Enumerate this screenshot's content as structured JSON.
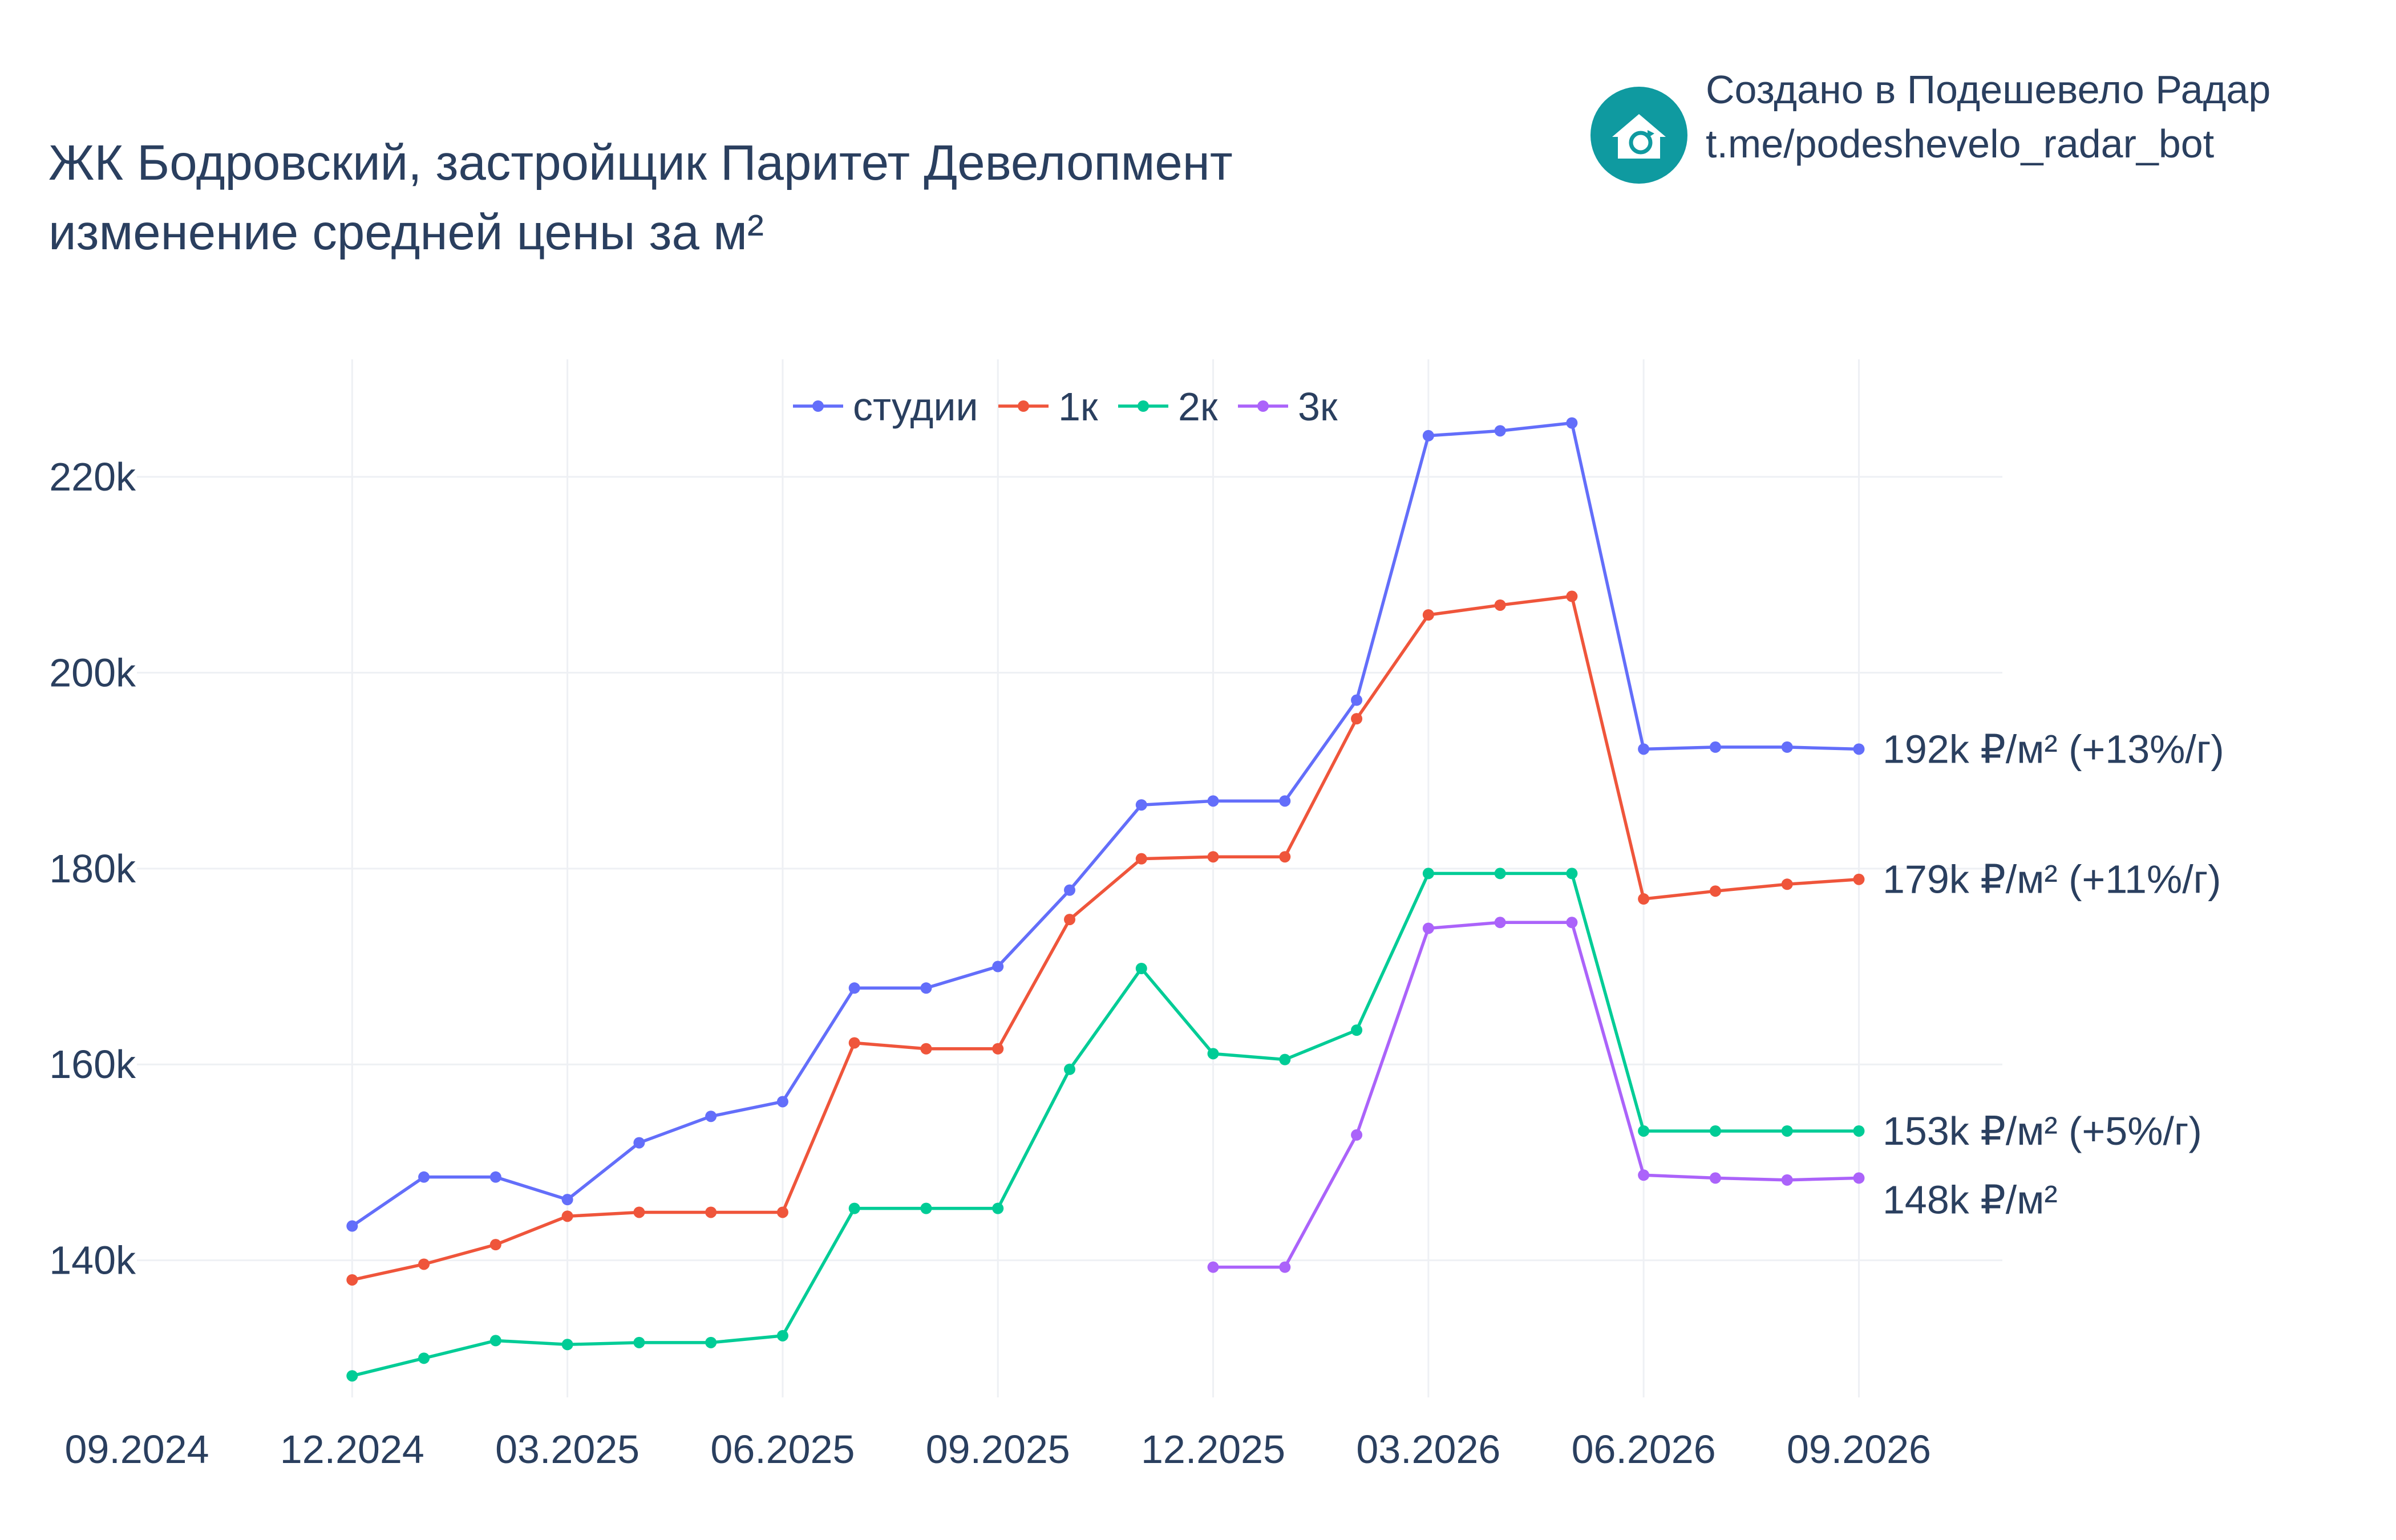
{
  "title": {
    "line1": "ЖК Бодровский, застройщик Паритет Девелопмент",
    "line2": "изменение средней цены за м²"
  },
  "brand": {
    "line1": "Создано в Подешевело Радар",
    "line2": "t.me/podeshevelo_radar_bot",
    "logo_icon": "house-refresh-icon",
    "logo_color": "#0f9aa0"
  },
  "chart_data": {
    "type": "line",
    "x_ticks": [
      "09.2024",
      "12.2024",
      "03.2025",
      "06.2025",
      "09.2025",
      "12.2025",
      "03.2026",
      "06.2026",
      "09.2026"
    ],
    "y_ticks": [
      140000,
      160000,
      180000,
      200000,
      220000
    ],
    "y_tick_labels": [
      "140k",
      "160k",
      "180k",
      "200k",
      "220k"
    ],
    "ylim": [
      126000,
      232000
    ],
    "xlim": [
      "2024-09",
      "2026-11"
    ],
    "grid": true,
    "legend_position": "top-center",
    "x": [
      "2024-12",
      "2025-01",
      "2025-02",
      "2025-03",
      "2025-04",
      "2025-05",
      "2025-06",
      "2025-07",
      "2025-08",
      "2025-09",
      "2025-10",
      "2025-11",
      "2025-12",
      "2026-01",
      "2026-02",
      "2026-03",
      "2026-04",
      "2026-05",
      "2026-06",
      "2026-07",
      "2026-08",
      "2026-09"
    ],
    "series": [
      {
        "name": "студии",
        "color": "#636efa",
        "values": [
          143500,
          148500,
          148500,
          146200,
          152000,
          154700,
          156200,
          167800,
          167800,
          170000,
          177800,
          186500,
          186900,
          186900,
          197200,
          224200,
          224700,
          225500,
          192200,
          192400,
          192400,
          192200
        ],
        "end_label": "192k ₽/м² (+13%/г)"
      },
      {
        "name": "1к",
        "color": "#ef553b",
        "values": [
          138000,
          139600,
          141600,
          144500,
          144900,
          144900,
          144900,
          162200,
          161600,
          161600,
          174800,
          181000,
          181200,
          181200,
          195300,
          205900,
          206900,
          207800,
          176900,
          177700,
          178400,
          178900
        ],
        "end_label": "179k ₽/м² (+11%/г)"
      },
      {
        "name": "2к",
        "color": "#00cc96",
        "values": [
          128200,
          130000,
          131800,
          131400,
          131600,
          131600,
          132300,
          145300,
          145300,
          145300,
          159500,
          169800,
          161100,
          160500,
          163500,
          179500,
          179500,
          179500,
          153200,
          153200,
          153200,
          153200
        ],
        "end_label": "153k ₽/м² (+5%/г)"
      },
      {
        "name": "3к",
        "color": "#ab63fa",
        "values": [
          null,
          null,
          null,
          null,
          null,
          null,
          null,
          null,
          null,
          null,
          null,
          null,
          139300,
          139300,
          152800,
          173900,
          174500,
          174500,
          148700,
          148400,
          148200,
          148400
        ],
        "end_label": "148k ₽/м²"
      }
    ]
  }
}
